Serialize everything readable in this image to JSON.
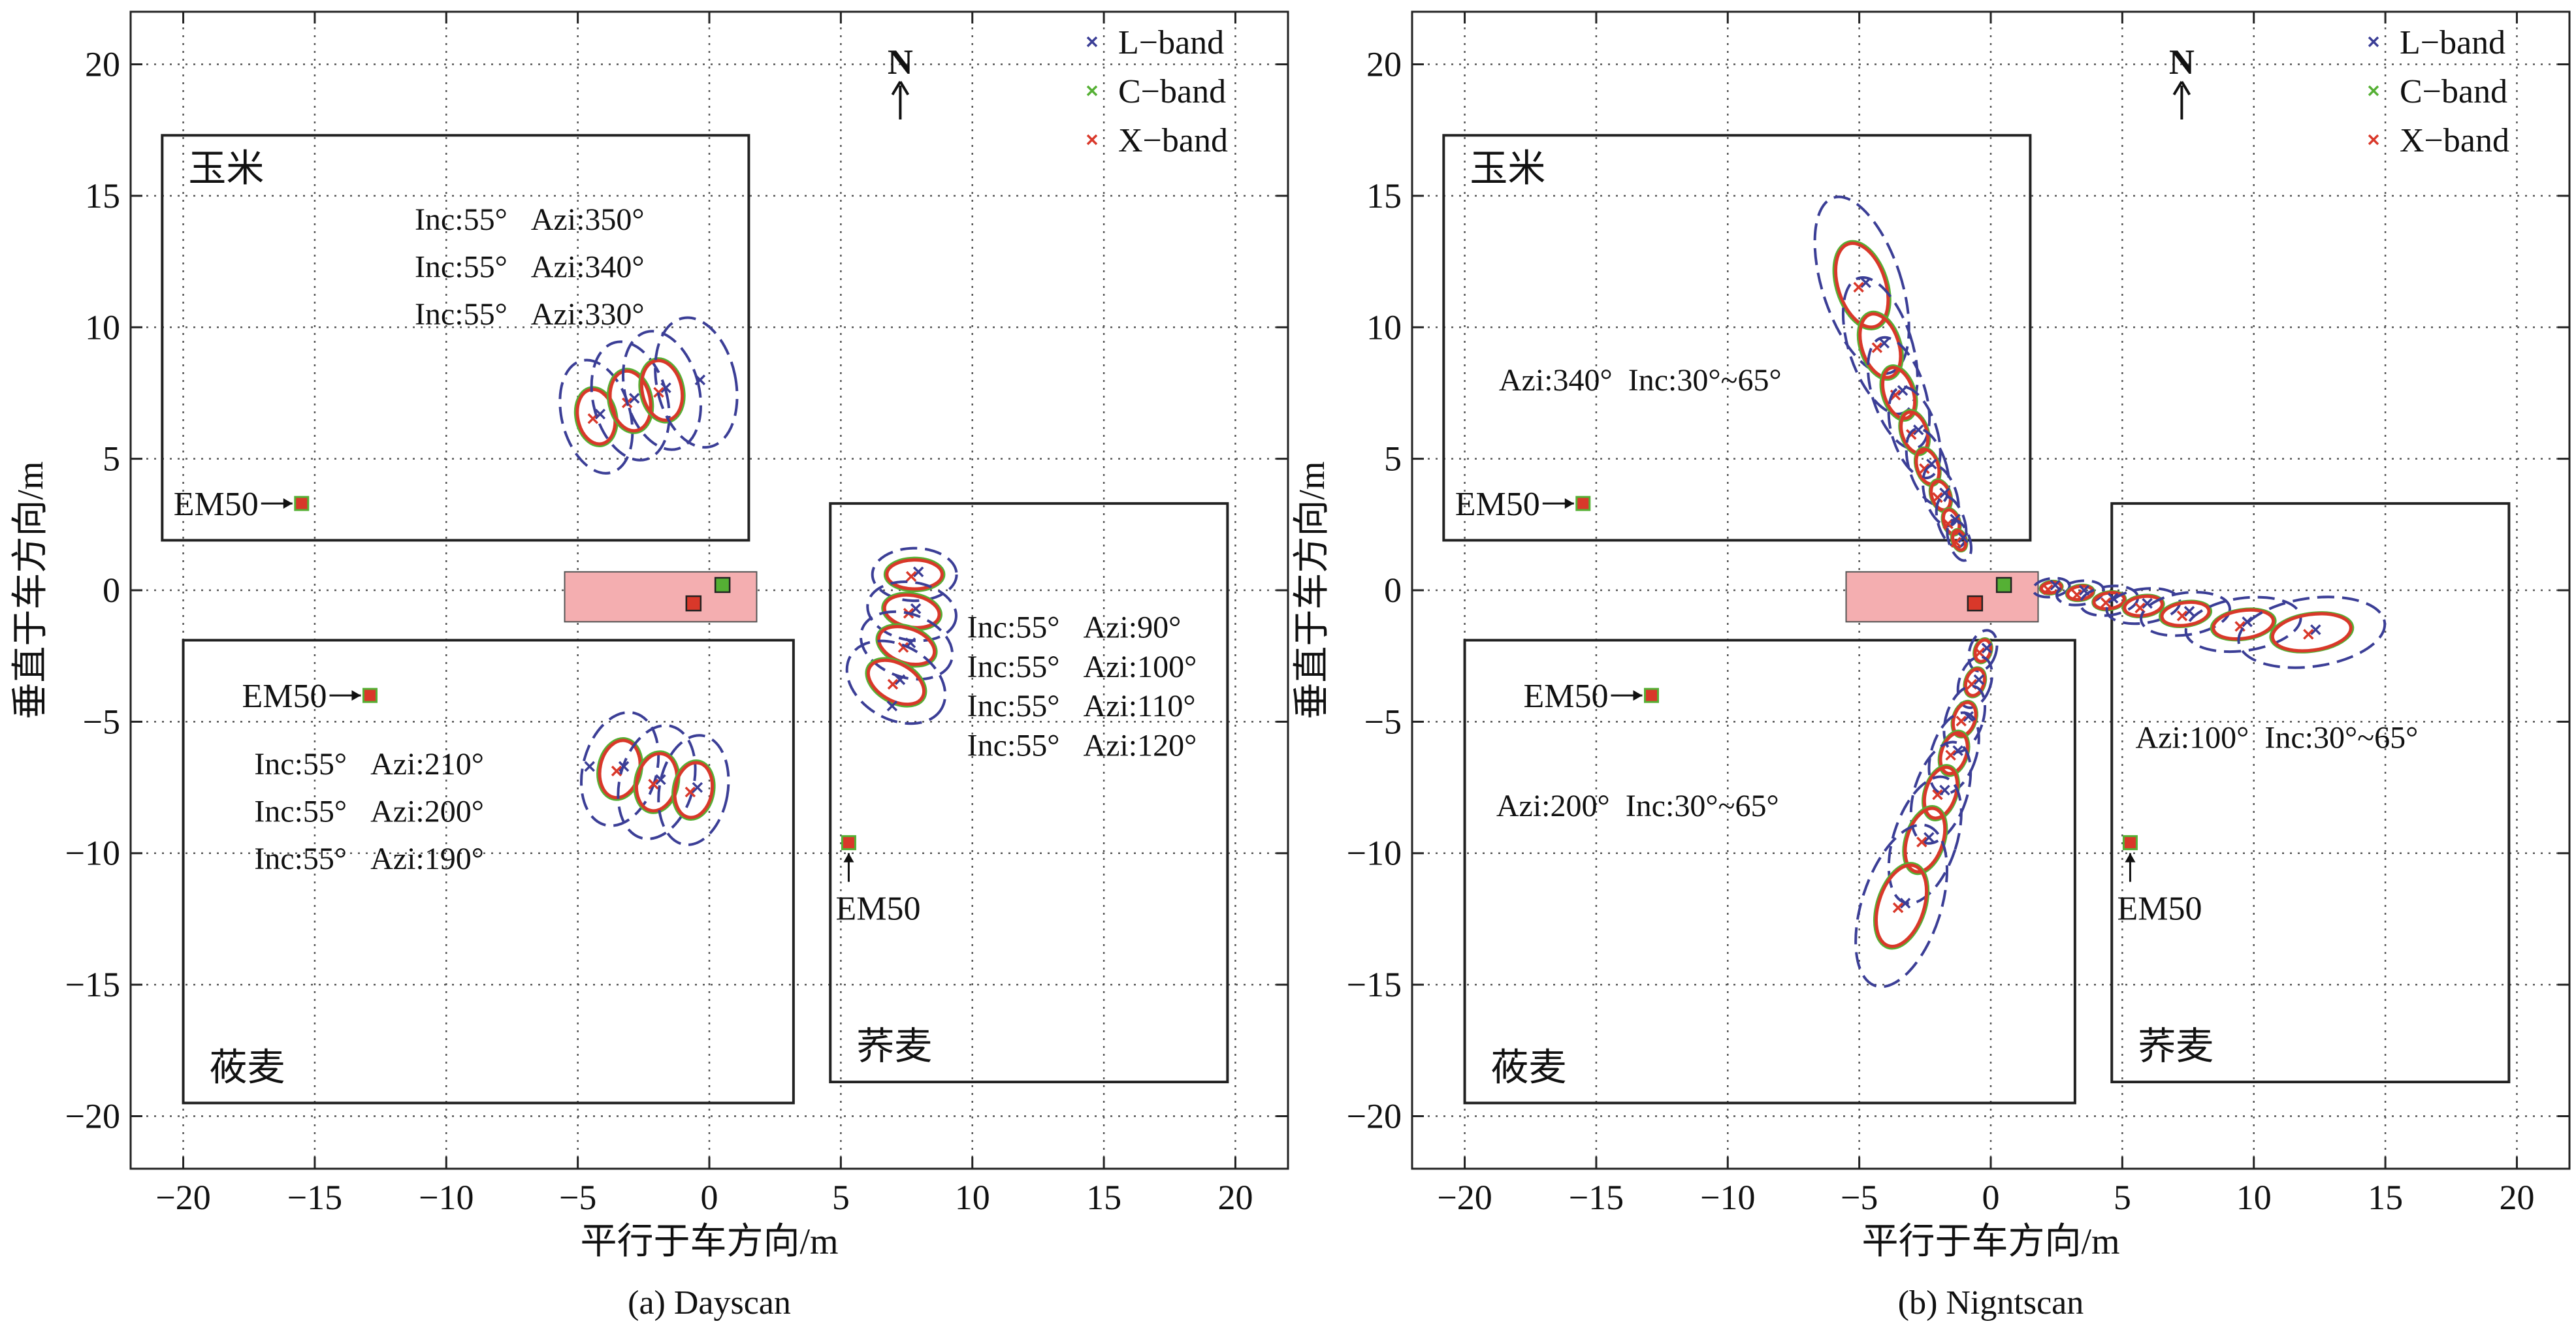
{
  "chart_data": [
    {
      "type": "scatter",
      "caption": "(a) Dayscan",
      "xlabel": "平行于车方向/m",
      "ylabel": "垂直于车方向/m",
      "xlim": [
        -22,
        22
      ],
      "ylim": [
        -22,
        22
      ],
      "xticks": [
        -20,
        -15,
        -10,
        -5,
        0,
        5,
        10,
        15,
        20
      ],
      "yticks": [
        20,
        15,
        10,
        5,
        0,
        -5,
        -10,
        -15,
        -20
      ],
      "grid": "dotted",
      "north_label": "N",
      "legend": {
        "placement": "top-right",
        "entries": [
          {
            "label": "L−band",
            "color": "#3b3e96"
          },
          {
            "label": "C−band",
            "color": "#55b034"
          },
          {
            "label": "X−band",
            "color": "#d9382a"
          }
        ]
      },
      "fields": [
        {
          "label": "玉米",
          "x0": -20.8,
          "x1": 1.5,
          "y0": 1.9,
          "y1": 17.3
        },
        {
          "label": "莜麦",
          "x0": -20.0,
          "x1": 3.2,
          "y0": -19.5,
          "y1": -1.9
        },
        {
          "label": "荞麦",
          "x0": 4.6,
          "x1": 19.7,
          "y0": -18.7,
          "y1": 3.3
        }
      ],
      "vehicle": {
        "x0": -5.5,
        "x1": 1.8,
        "y0": -1.2,
        "y1": 0.7,
        "markers": [
          {
            "x": 0.5,
            "y": 0.2,
            "color": "#55b034"
          },
          {
            "x": -0.6,
            "y": -0.5,
            "color": "#d9382a"
          }
        ]
      },
      "em50": [
        {
          "label": "EM50",
          "x": -15.5,
          "y": 3.3,
          "side": "left"
        },
        {
          "label": "EM50",
          "x": -12.9,
          "y": -4.0,
          "side": "left"
        },
        {
          "label": "EM50",
          "x": 5.3,
          "y": -9.6,
          "side": "below"
        }
      ],
      "annotations": [
        {
          "text": "Inc:55°   Azi:350°",
          "x": -11.2,
          "y": 14.1
        },
        {
          "text": "Inc:55°   Azi:340°",
          "x": -11.2,
          "y": 12.3
        },
        {
          "text": "Inc:55°   Azi:330°",
          "x": -11.2,
          "y": 10.5
        },
        {
          "text": "Inc:55°   Azi:210°",
          "x": -17.3,
          "y": -6.6
        },
        {
          "text": "Inc:55°   Azi:200°",
          "x": -17.3,
          "y": -8.4
        },
        {
          "text": "Inc:55°   Azi:190°",
          "x": -17.3,
          "y": -10.2
        },
        {
          "text": "Inc:55°   Azi:90°",
          "x": 9.8,
          "y": -1.4
        },
        {
          "text": "Inc:55°   Azi:100°",
          "x": 9.8,
          "y": -2.9
        },
        {
          "text": "Inc:55°   Azi:110°",
          "x": 9.8,
          "y": -4.4
        },
        {
          "text": "Inc:55°   Azi:120°",
          "x": 9.8,
          "y": -5.9
        }
      ],
      "footprints": [
        {
          "x": -4.3,
          "y": 6.6,
          "L": [
            1.3,
            2.2,
            -15
          ],
          "C": [
            0.75,
            1.1,
            -12
          ],
          "X": [
            0.7,
            1.05,
            -12
          ]
        },
        {
          "x": -3.0,
          "y": 7.2,
          "L": [
            1.4,
            2.3,
            -15
          ],
          "C": [
            0.8,
            1.2,
            -12
          ],
          "X": [
            0.75,
            1.15,
            -12
          ]
        },
        {
          "x": -1.8,
          "y": 7.6,
          "L": [
            1.4,
            2.3,
            -15
          ],
          "C": [
            0.8,
            1.2,
            -12
          ],
          "X": [
            0.75,
            1.15,
            -12
          ]
        },
        {
          "x": -0.5,
          "y": 7.9,
          "L": [
            1.5,
            2.5,
            -12
          ],
          "C": null,
          "X": null
        },
        {
          "x": 7.8,
          "y": 0.6,
          "L": [
            1.6,
            1.0,
            0
          ],
          "C": [
            1.1,
            0.6,
            0
          ],
          "X": [
            1.05,
            0.55,
            0
          ]
        },
        {
          "x": 7.7,
          "y": -0.8,
          "L": [
            1.7,
            1.1,
            10
          ],
          "C": [
            1.1,
            0.65,
            10
          ],
          "X": [
            1.05,
            0.6,
            10
          ]
        },
        {
          "x": 7.5,
          "y": -2.1,
          "L": [
            1.8,
            1.2,
            20
          ],
          "C": [
            1.15,
            0.7,
            20
          ],
          "X": [
            1.1,
            0.65,
            20
          ]
        },
        {
          "x": 7.1,
          "y": -3.5,
          "L": [
            2.0,
            1.4,
            30
          ],
          "C": [
            1.2,
            0.75,
            30
          ],
          "X": [
            1.15,
            0.7,
            30
          ]
        },
        {
          "x": 6.8,
          "y": -4.5,
          "L": null,
          "C": null,
          "X": null
        },
        {
          "x": -3.4,
          "y": -6.8,
          "L": [
            1.4,
            2.2,
            15
          ],
          "C": [
            0.8,
            1.15,
            12
          ],
          "X": [
            0.75,
            1.1,
            12
          ]
        },
        {
          "x": -2.0,
          "y": -7.3,
          "L": [
            1.4,
            2.2,
            15
          ],
          "C": [
            0.8,
            1.15,
            12
          ],
          "X": [
            0.75,
            1.1,
            12
          ]
        },
        {
          "x": -0.6,
          "y": -7.6,
          "L": [
            1.3,
            2.1,
            10
          ],
          "C": [
            0.75,
            1.1,
            10
          ],
          "X": [
            0.7,
            1.05,
            10
          ]
        },
        {
          "x": -4.7,
          "y": -6.8,
          "L": null,
          "C": null,
          "X": null
        }
      ]
    },
    {
      "type": "scatter",
      "caption": "(b) Nigntscan",
      "xlabel": "平行于车方向/m",
      "ylabel": "垂直于车方向/m",
      "xlim": [
        -22,
        22
      ],
      "ylim": [
        -22,
        22
      ],
      "xticks": [
        -20,
        -15,
        -10,
        -5,
        0,
        5,
        10,
        15,
        20
      ],
      "yticks": [
        20,
        15,
        10,
        5,
        0,
        -5,
        -10,
        -15,
        -20
      ],
      "grid": "dotted",
      "north_label": "N",
      "legend": {
        "placement": "top-right",
        "entries": [
          {
            "label": "L−band",
            "color": "#3b3e96"
          },
          {
            "label": "C−band",
            "color": "#55b034"
          },
          {
            "label": "X−band",
            "color": "#d9382a"
          }
        ]
      },
      "fields": [
        {
          "label": "玉米",
          "x0": -20.8,
          "x1": 1.5,
          "y0": 1.9,
          "y1": 17.3
        },
        {
          "label": "莜麦",
          "x0": -20.0,
          "x1": 3.2,
          "y0": -19.5,
          "y1": -1.9
        },
        {
          "label": "荞麦",
          "x0": 4.6,
          "x1": 19.7,
          "y0": -18.7,
          "y1": 3.3
        }
      ],
      "vehicle": {
        "x0": -5.5,
        "x1": 1.8,
        "y0": -1.2,
        "y1": 0.7,
        "markers": [
          {
            "x": 0.5,
            "y": 0.2,
            "color": "#55b034"
          },
          {
            "x": -0.6,
            "y": -0.5,
            "color": "#d9382a"
          }
        ]
      },
      "em50": [
        {
          "label": "EM50",
          "x": -15.5,
          "y": 3.3,
          "side": "left"
        },
        {
          "label": "EM50",
          "x": -12.9,
          "y": -4.0,
          "side": "left"
        },
        {
          "label": "EM50",
          "x": 5.3,
          "y": -9.6,
          "side": "below"
        }
      ],
      "annotations": [
        {
          "text": "Azi:340°  Inc:30°~65°",
          "x": -18.7,
          "y": 8.0
        },
        {
          "text": "Azi:200°  Inc:30°~65°",
          "x": -18.8,
          "y": -8.2
        },
        {
          "text": "Azi:100°  Inc:30°~65°",
          "x": 5.5,
          "y": -5.6
        }
      ],
      "footprints": [
        {
          "x": -4.9,
          "y": 11.6,
          "L": [
            1.5,
            3.5,
            -18
          ],
          "C": [
            0.95,
            1.7,
            -18
          ],
          "X": [
            0.9,
            1.65,
            -18
          ]
        },
        {
          "x": -4.2,
          "y": 9.3,
          "L": [
            1.2,
            2.7,
            -18
          ],
          "C": [
            0.75,
            1.3,
            -18
          ],
          "X": [
            0.7,
            1.25,
            -18
          ]
        },
        {
          "x": -3.5,
          "y": 7.5,
          "L": [
            1.0,
            2.2,
            -18
          ],
          "C": [
            0.6,
            1.05,
            -18
          ],
          "X": [
            0.55,
            1.0,
            -18
          ]
        },
        {
          "x": -2.9,
          "y": 6.0,
          "L": [
            0.85,
            1.8,
            -18
          ],
          "C": [
            0.5,
            0.85,
            -18
          ],
          "X": [
            0.47,
            0.8,
            -18
          ]
        },
        {
          "x": -2.4,
          "y": 4.7,
          "L": [
            0.7,
            1.5,
            -18
          ],
          "C": [
            0.42,
            0.72,
            -18
          ],
          "X": [
            0.4,
            0.68,
            -18
          ]
        },
        {
          "x": -1.9,
          "y": 3.6,
          "L": [
            0.6,
            1.2,
            -18
          ],
          "C": [
            0.36,
            0.6,
            -18
          ],
          "X": [
            0.34,
            0.56,
            -18
          ]
        },
        {
          "x": -1.5,
          "y": 2.6,
          "L": [
            0.5,
            1.0,
            -18
          ],
          "C": [
            0.3,
            0.5,
            -18
          ],
          "X": [
            0.28,
            0.47,
            -18
          ]
        },
        {
          "x": -1.2,
          "y": 1.9,
          "L": [
            0.4,
            0.8,
            -18
          ],
          "C": [
            0.25,
            0.4,
            -18
          ],
          "X": [
            0.23,
            0.38,
            -18
          ]
        },
        {
          "x": -0.3,
          "y": -2.3,
          "L": [
            0.5,
            0.8,
            18
          ],
          "C": [
            0.3,
            0.45,
            18
          ],
          "X": [
            0.28,
            0.42,
            18
          ]
        },
        {
          "x": -0.6,
          "y": -3.5,
          "L": [
            0.6,
            1.0,
            18
          ],
          "C": [
            0.36,
            0.55,
            18
          ],
          "X": [
            0.34,
            0.52,
            18
          ]
        },
        {
          "x": -1.0,
          "y": -4.9,
          "L": [
            0.7,
            1.3,
            18
          ],
          "C": [
            0.42,
            0.68,
            18
          ],
          "X": [
            0.4,
            0.65,
            18
          ]
        },
        {
          "x": -1.4,
          "y": -6.2,
          "L": [
            0.85,
            1.6,
            18
          ],
          "C": [
            0.5,
            0.85,
            18
          ],
          "X": [
            0.47,
            0.8,
            18
          ]
        },
        {
          "x": -1.9,
          "y": -7.7,
          "L": [
            1.0,
            2.0,
            18
          ],
          "C": [
            0.6,
            1.05,
            18
          ],
          "X": [
            0.57,
            1.0,
            18
          ]
        },
        {
          "x": -2.5,
          "y": -9.5,
          "L": [
            1.2,
            2.5,
            18
          ],
          "C": [
            0.72,
            1.3,
            18
          ],
          "X": [
            0.68,
            1.25,
            18
          ]
        },
        {
          "x": -3.4,
          "y": -12.0,
          "L": [
            1.5,
            3.2,
            18
          ],
          "C": [
            0.9,
            1.65,
            18
          ],
          "X": [
            0.86,
            1.6,
            18
          ]
        },
        {
          "x": 2.3,
          "y": 0.1,
          "L": [
            0.7,
            0.35,
            -8
          ],
          "C": [
            0.4,
            0.22,
            -8
          ],
          "X": [
            0.38,
            0.2,
            -8
          ]
        },
        {
          "x": 3.4,
          "y": -0.1,
          "L": [
            0.9,
            0.45,
            -8
          ],
          "C": [
            0.5,
            0.27,
            -8
          ],
          "X": [
            0.48,
            0.25,
            -8
          ]
        },
        {
          "x": 4.5,
          "y": -0.4,
          "L": [
            1.1,
            0.55,
            -8
          ],
          "C": [
            0.6,
            0.32,
            -8
          ],
          "X": [
            0.58,
            0.3,
            -8
          ]
        },
        {
          "x": 5.8,
          "y": -0.6,
          "L": [
            1.4,
            0.65,
            -8
          ],
          "C": [
            0.75,
            0.38,
            -8
          ],
          "X": [
            0.72,
            0.36,
            -8
          ]
        },
        {
          "x": 7.4,
          "y": -0.9,
          "L": [
            1.7,
            0.8,
            -8
          ],
          "C": [
            0.95,
            0.45,
            -8
          ],
          "X": [
            0.9,
            0.43,
            -8
          ]
        },
        {
          "x": 9.6,
          "y": -1.3,
          "L": [
            2.2,
            1.0,
            -8
          ],
          "C": [
            1.2,
            0.55,
            -8
          ],
          "X": [
            1.15,
            0.53,
            -8
          ]
        },
        {
          "x": 12.2,
          "y": -1.6,
          "L": [
            2.8,
            1.3,
            -8
          ],
          "C": [
            1.55,
            0.7,
            -8
          ],
          "X": [
            1.5,
            0.68,
            -8
          ]
        }
      ]
    }
  ]
}
